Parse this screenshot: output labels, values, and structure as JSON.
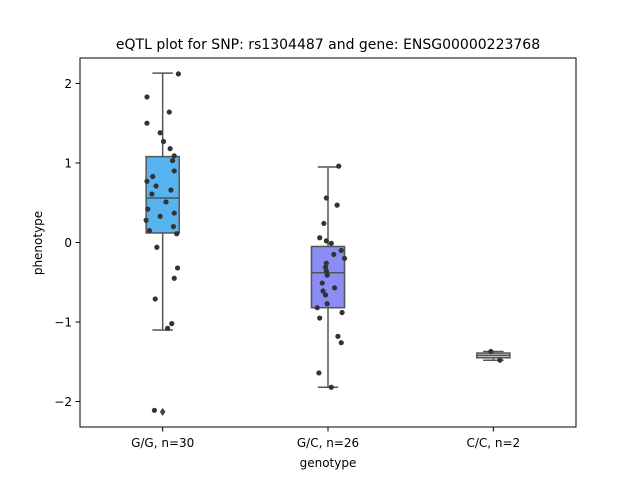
{
  "chart_data": {
    "type": "box",
    "title": "eQTL plot for SNP: rs1304487 and gene: ENSG00000223768",
    "xlabel": "genotype",
    "ylabel": "phenotype",
    "ylim": [
      -2.32,
      2.32
    ],
    "yticks": [
      -2,
      -1,
      0,
      1,
      2
    ],
    "ytick_labels": [
      "−2",
      "−1",
      "0",
      "1",
      "2"
    ],
    "grid": false,
    "categories": [
      "G/G, n=30",
      "G/C, n=26",
      "C/C, n=2"
    ],
    "boxes": [
      {
        "category": "G/G, n=30",
        "color": "#56b4f0",
        "q1": 0.12,
        "median": 0.56,
        "q3": 1.08,
        "whisker_low": -1.1,
        "whisker_high": 2.13,
        "outliers": [
          -2.13
        ],
        "points": [
          {
            "y": 2.12,
            "jitter": 0.19
          },
          {
            "y": 1.83,
            "jitter": -0.19
          },
          {
            "y": 1.64,
            "jitter": 0.08
          },
          {
            "y": 1.5,
            "jitter": -0.19
          },
          {
            "y": 1.38,
            "jitter": -0.03
          },
          {
            "y": 1.27,
            "jitter": 0.01
          },
          {
            "y": 1.18,
            "jitter": 0.09
          },
          {
            "y": 1.09,
            "jitter": 0.14
          },
          {
            "y": 1.03,
            "jitter": 0.12
          },
          {
            "y": 0.9,
            "jitter": 0.14
          },
          {
            "y": 0.83,
            "jitter": -0.12
          },
          {
            "y": 0.77,
            "jitter": -0.19
          },
          {
            "y": 0.71,
            "jitter": -0.08
          },
          {
            "y": 0.66,
            "jitter": 0.1
          },
          {
            "y": 0.61,
            "jitter": -0.13
          },
          {
            "y": 0.51,
            "jitter": 0.04
          },
          {
            "y": 0.42,
            "jitter": -0.18
          },
          {
            "y": 0.37,
            "jitter": 0.14
          },
          {
            "y": 0.33,
            "jitter": -0.03
          },
          {
            "y": 0.28,
            "jitter": -0.2
          },
          {
            "y": 0.2,
            "jitter": 0.13
          },
          {
            "y": 0.15,
            "jitter": -0.16
          },
          {
            "y": 0.11,
            "jitter": 0.17
          },
          {
            "y": -0.06,
            "jitter": -0.07
          },
          {
            "y": -0.32,
            "jitter": 0.18
          },
          {
            "y": -0.45,
            "jitter": 0.14
          },
          {
            "y": -0.71,
            "jitter": -0.09
          },
          {
            "y": -1.02,
            "jitter": 0.11
          },
          {
            "y": -1.08,
            "jitter": 0.06
          },
          {
            "y": -2.11,
            "jitter": -0.1
          }
        ]
      },
      {
        "category": "G/C, n=26",
        "color": "#8c8cf5",
        "q1": -0.82,
        "median": -0.38,
        "q3": -0.05,
        "whisker_low": -1.82,
        "whisker_high": 0.95,
        "outliers": [],
        "points": [
          {
            "y": 0.96,
            "jitter": 0.13
          },
          {
            "y": 0.56,
            "jitter": -0.02
          },
          {
            "y": 0.47,
            "jitter": 0.11
          },
          {
            "y": 0.24,
            "jitter": -0.05
          },
          {
            "y": 0.06,
            "jitter": -0.1
          },
          {
            "y": 0.02,
            "jitter": -0.02
          },
          {
            "y": -0.01,
            "jitter": 0.04
          },
          {
            "y": -0.1,
            "jitter": 0.16
          },
          {
            "y": -0.15,
            "jitter": 0.07
          },
          {
            "y": -0.2,
            "jitter": 0.2
          },
          {
            "y": -0.26,
            "jitter": -0.02
          },
          {
            "y": -0.31,
            "jitter": -0.03
          },
          {
            "y": -0.36,
            "jitter": -0.02
          },
          {
            "y": -0.41,
            "jitter": -0.01
          },
          {
            "y": -0.51,
            "jitter": -0.07
          },
          {
            "y": -0.57,
            "jitter": 0.08
          },
          {
            "y": -0.61,
            "jitter": -0.06
          },
          {
            "y": -0.66,
            "jitter": -0.03
          },
          {
            "y": -0.77,
            "jitter": -0.01
          },
          {
            "y": -0.82,
            "jitter": -0.13
          },
          {
            "y": -0.88,
            "jitter": 0.17
          },
          {
            "y": -0.95,
            "jitter": -0.1
          },
          {
            "y": -1.18,
            "jitter": 0.12
          },
          {
            "y": -1.26,
            "jitter": 0.16
          },
          {
            "y": -1.64,
            "jitter": -0.11
          },
          {
            "y": -1.82,
            "jitter": 0.04
          }
        ]
      },
      {
        "category": "C/C, n=2",
        "color": "#c8c8c8",
        "q1": -1.45,
        "median": -1.42,
        "q3": -1.39,
        "whisker_low": -1.48,
        "whisker_high": -1.37,
        "outliers": [],
        "points": [
          {
            "y": -1.37,
            "jitter": -0.03
          },
          {
            "y": -1.48,
            "jitter": 0.08
          }
        ]
      }
    ]
  }
}
